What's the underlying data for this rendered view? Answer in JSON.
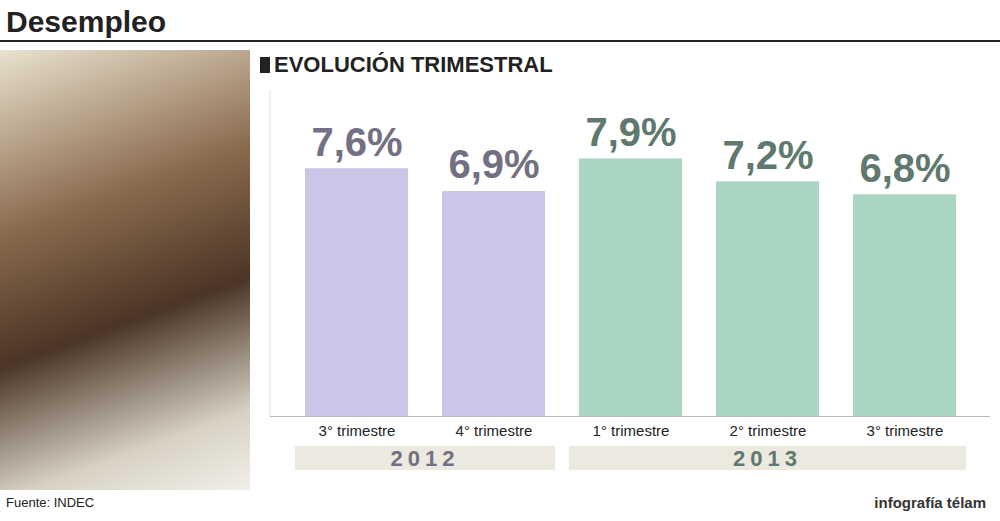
{
  "chart_data": {
    "type": "bar",
    "title": "Desempleo",
    "subtitle": "EVOLUCIÓN TRIMESTRAL",
    "categories": [
      "3° trimestre",
      "4° trimestre",
      "1° trimestre",
      "2° trimestre",
      "3° trimestre"
    ],
    "groups": [
      "2012",
      "2012",
      "2013",
      "2013",
      "2013"
    ],
    "values": [
      7.6,
      6.9,
      7.9,
      7.2,
      6.8
    ],
    "value_labels": [
      "7,6%",
      "6,9%",
      "7,9%",
      "7,2%",
      "6,8%"
    ],
    "colors": [
      "#cbc6e8",
      "#cbc6e8",
      "#a9d6c2",
      "#a9d6c2",
      "#a9d6c2"
    ],
    "ylim": [
      0,
      10
    ],
    "tick_labels": "x",
    "data_labels": true,
    "source": "Fuente: INDEC",
    "credit": "infografía télam"
  }
}
